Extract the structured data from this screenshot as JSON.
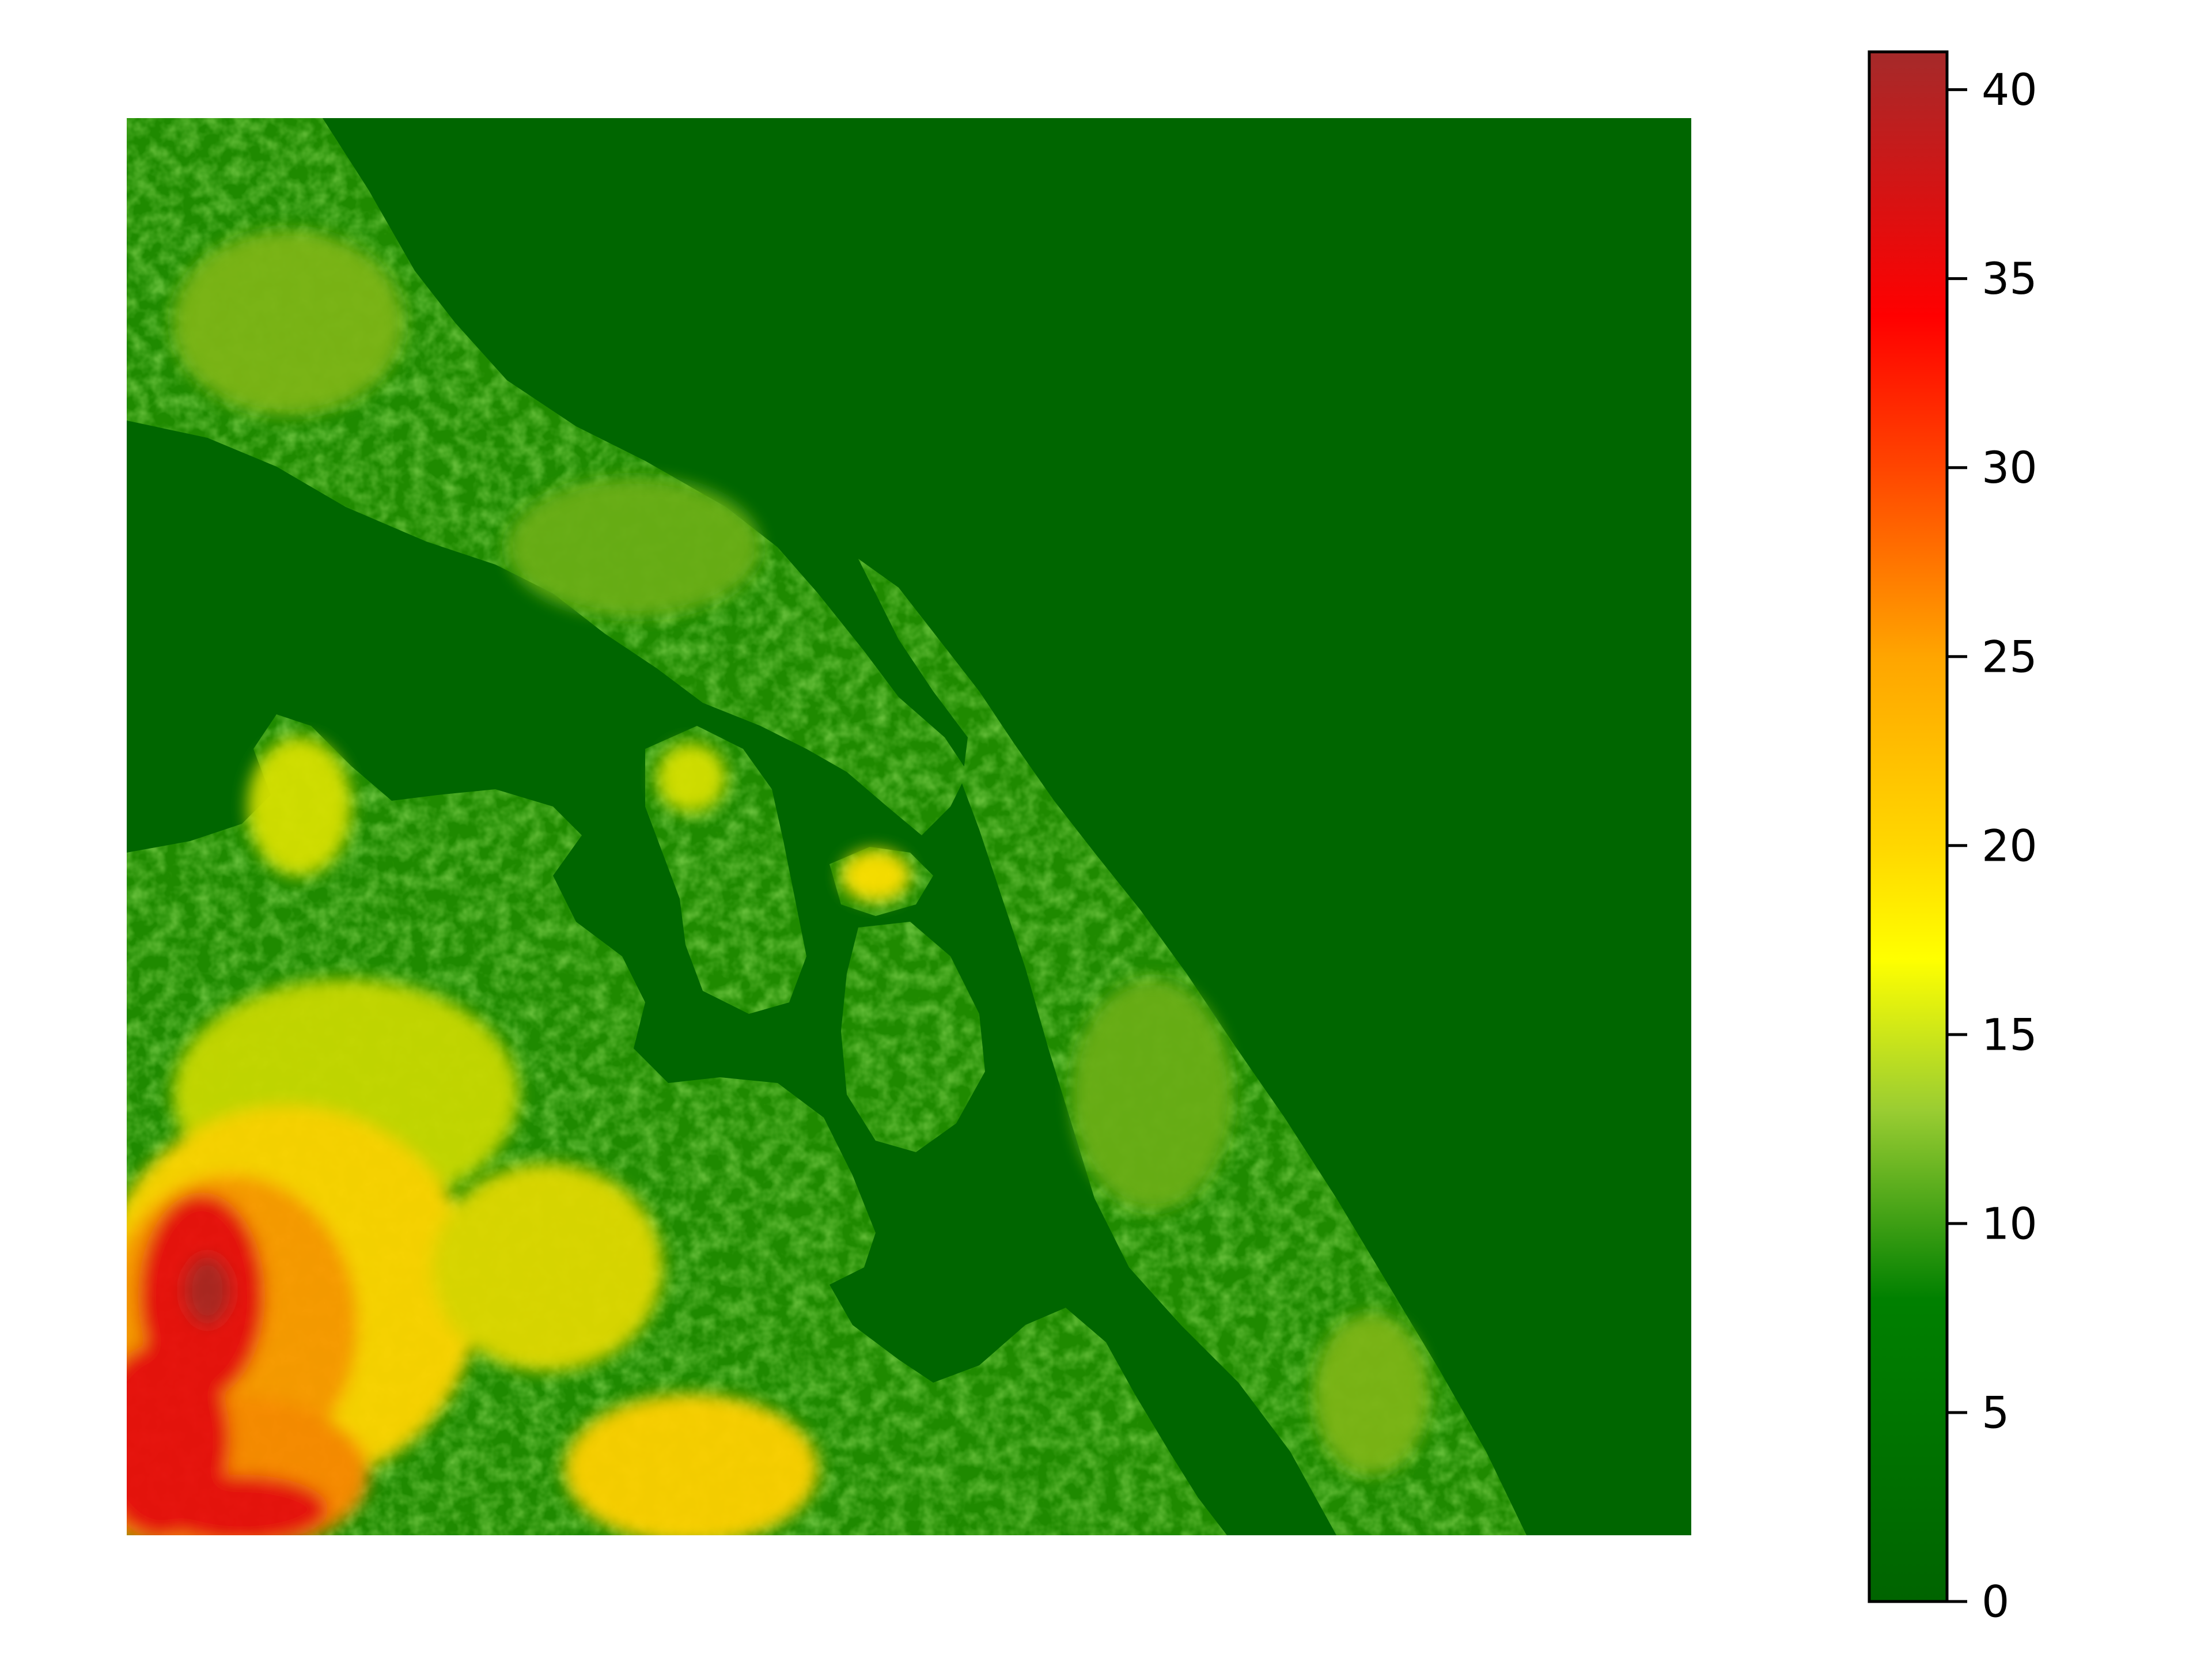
{
  "chart_data": {
    "type": "heatmap",
    "title": "",
    "xlabel": "",
    "ylabel": "",
    "axes_visible": false,
    "grid": false,
    "legend": "none",
    "colorbar": {
      "placement": "right",
      "range": [
        0,
        41
      ],
      "ticks": [
        0,
        5,
        10,
        15,
        20,
        25,
        30,
        35,
        40
      ],
      "tick_labels": [
        "0",
        "5",
        "10",
        "15",
        "20",
        "25",
        "30",
        "35",
        "40"
      ],
      "stops": [
        {
          "value": 0,
          "color": "#006400"
        },
        {
          "value": 8,
          "color": "#008000"
        },
        {
          "value": 13,
          "color": "#9acd32"
        },
        {
          "value": 17,
          "color": "#ffff00"
        },
        {
          "value": 20,
          "color": "#ffd700"
        },
        {
          "value": 25,
          "color": "#ffa500"
        },
        {
          "value": 30,
          "color": "#ff4500"
        },
        {
          "value": 34,
          "color": "#ff0000"
        },
        {
          "value": 41,
          "color": "#a52a2a"
        }
      ]
    },
    "water_value": 0,
    "colors": {
      "water": "#006600",
      "land_low": "#1f8a00",
      "land_mid": "#7fbf1a",
      "land_high": "#ffd700",
      "peak": "#e81010"
    }
  }
}
